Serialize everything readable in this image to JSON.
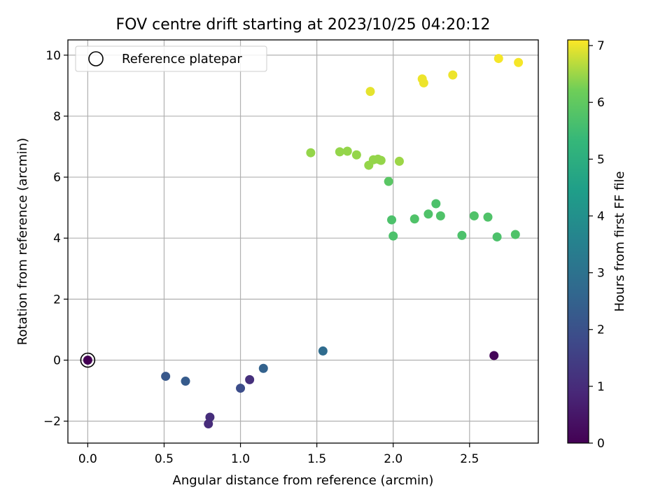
{
  "chart_data": {
    "type": "scatter",
    "title": "FOV centre drift starting at 2023/10/25 04:20:12",
    "xlabel": "Angular distance from reference (arcmin)",
    "ylabel": "Rotation from reference (arcmin)",
    "xlim": [
      -0.13,
      2.95
    ],
    "ylim": [
      -2.72,
      10.5
    ],
    "xticks": [
      0.0,
      0.5,
      1.0,
      1.5,
      2.0,
      2.5
    ],
    "xtick_labels": [
      "0.0",
      "0.5",
      "1.0",
      "1.5",
      "2.0",
      "2.5"
    ],
    "yticks": [
      -2,
      0,
      2,
      4,
      6,
      8,
      10
    ],
    "ytick_labels": [
      "−2",
      "0",
      "2",
      "4",
      "6",
      "8",
      "10"
    ],
    "grid": true,
    "legend": {
      "placement": "top-left",
      "entries": [
        "Reference platepar"
      ]
    },
    "reference_point": {
      "x": 0.0,
      "y": 0.0
    },
    "colorbar": {
      "label": "Hours from first FF file",
      "range": [
        0,
        7.1
      ],
      "ticks": [
        0,
        1,
        2,
        3,
        4,
        5,
        6,
        7
      ],
      "tick_labels": [
        "0",
        "1",
        "2",
        "3",
        "4",
        "5",
        "6",
        "7"
      ],
      "colormap": "viridis"
    },
    "series": [
      {
        "points": [
          {
            "x": 0.0,
            "y": 0.0,
            "c": 0.0
          },
          {
            "x": 2.66,
            "y": 0.15,
            "c": 0.1
          },
          {
            "x": 0.79,
            "y": -2.09,
            "c": 1.0
          },
          {
            "x": 0.8,
            "y": -1.87,
            "c": 1.05
          },
          {
            "x": 1.06,
            "y": -0.64,
            "c": 1.1
          },
          {
            "x": 1.0,
            "y": -0.92,
            "c": 1.9
          },
          {
            "x": 0.51,
            "y": -0.53,
            "c": 2.2
          },
          {
            "x": 0.64,
            "y": -0.69,
            "c": 2.3
          },
          {
            "x": 1.15,
            "y": -0.27,
            "c": 2.5
          },
          {
            "x": 1.54,
            "y": 0.3,
            "c": 2.8
          },
          {
            "x": 1.99,
            "y": 4.6,
            "c": 5.7
          },
          {
            "x": 2.0,
            "y": 4.07,
            "c": 5.7
          },
          {
            "x": 2.14,
            "y": 4.63,
            "c": 5.75
          },
          {
            "x": 2.23,
            "y": 4.79,
            "c": 5.75
          },
          {
            "x": 2.28,
            "y": 5.13,
            "c": 5.7
          },
          {
            "x": 2.31,
            "y": 4.73,
            "c": 5.75
          },
          {
            "x": 2.45,
            "y": 4.09,
            "c": 5.7
          },
          {
            "x": 2.53,
            "y": 4.73,
            "c": 5.75
          },
          {
            "x": 2.62,
            "y": 4.69,
            "c": 5.75
          },
          {
            "x": 2.68,
            "y": 4.04,
            "c": 5.7
          },
          {
            "x": 2.8,
            "y": 4.12,
            "c": 5.75
          },
          {
            "x": 1.97,
            "y": 5.86,
            "c": 5.9
          },
          {
            "x": 1.46,
            "y": 6.8,
            "c": 6.45
          },
          {
            "x": 1.65,
            "y": 6.83,
            "c": 6.45
          },
          {
            "x": 1.7,
            "y": 6.85,
            "c": 6.45
          },
          {
            "x": 1.76,
            "y": 6.73,
            "c": 6.45
          },
          {
            "x": 1.84,
            "y": 6.39,
            "c": 6.45
          },
          {
            "x": 1.87,
            "y": 6.57,
            "c": 6.45
          },
          {
            "x": 1.9,
            "y": 6.59,
            "c": 6.45
          },
          {
            "x": 1.92,
            "y": 6.55,
            "c": 6.45
          },
          {
            "x": 2.04,
            "y": 6.52,
            "c": 6.5
          },
          {
            "x": 1.85,
            "y": 8.81,
            "c": 6.95
          },
          {
            "x": 2.19,
            "y": 9.22,
            "c": 7.0
          },
          {
            "x": 2.2,
            "y": 9.09,
            "c": 7.0
          },
          {
            "x": 2.39,
            "y": 9.35,
            "c": 7.0
          },
          {
            "x": 2.69,
            "y": 9.89,
            "c": 7.05
          },
          {
            "x": 2.82,
            "y": 9.76,
            "c": 7.05
          }
        ]
      }
    ]
  }
}
